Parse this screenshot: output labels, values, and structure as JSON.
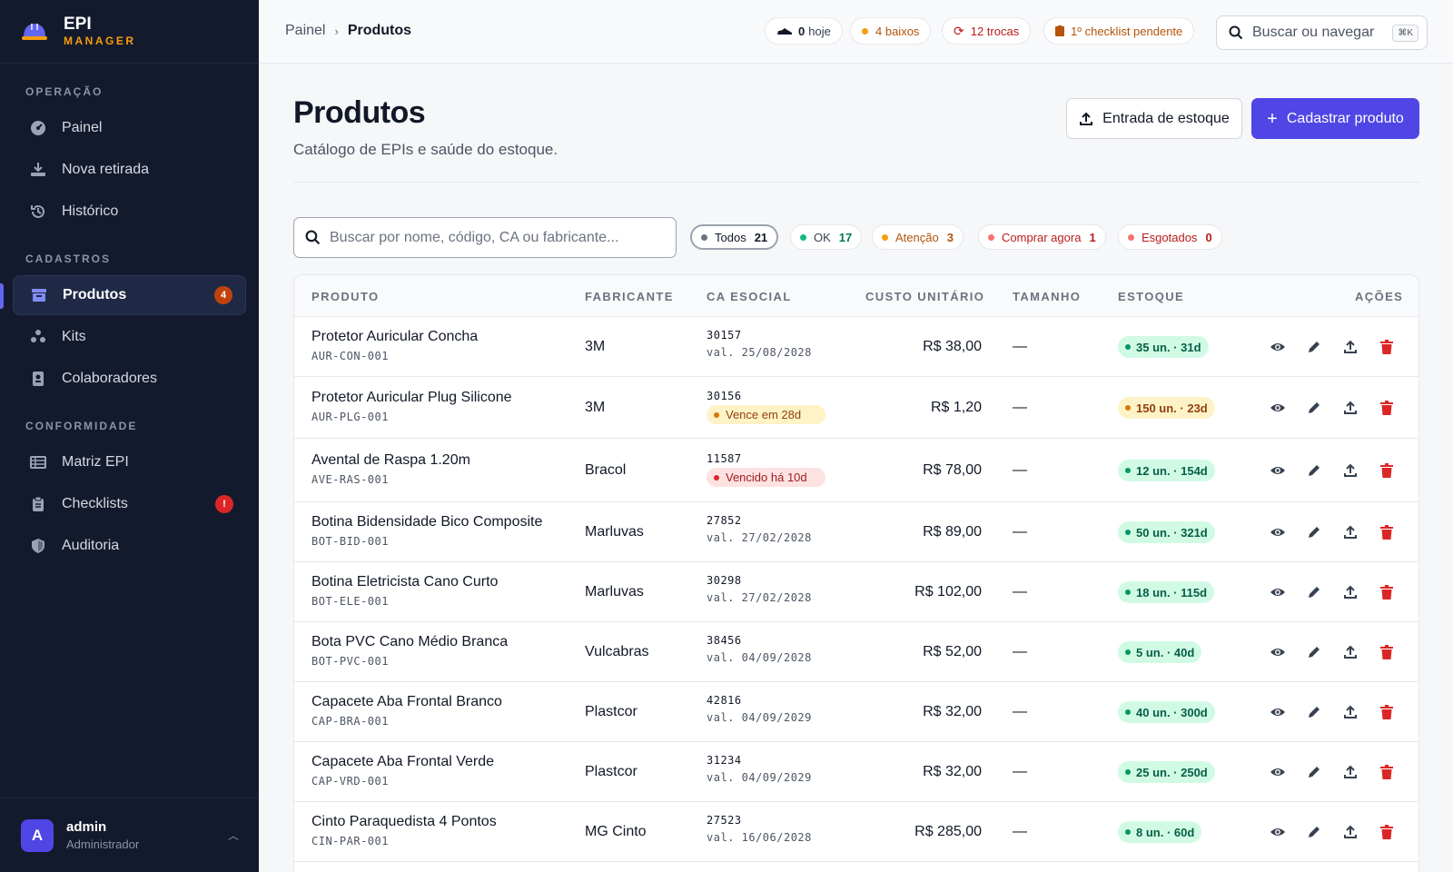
{
  "brand": {
    "title": "EPI",
    "subtitle": "MANAGER"
  },
  "sidebar": {
    "sections": [
      {
        "label": "OPERAÇÃO"
      },
      {
        "label": "CADASTROS"
      },
      {
        "label": "CONFORMIDADE"
      }
    ],
    "items": [
      {
        "label": "Painel",
        "icon": "dashboard-icon"
      },
      {
        "label": "Nova retirada",
        "icon": "hand-receive-icon"
      },
      {
        "label": "Histórico",
        "icon": "history-icon"
      },
      {
        "label": "Produtos",
        "icon": "archive-box-icon",
        "badge": "4",
        "active": true
      },
      {
        "label": "Kits",
        "icon": "kits-icon"
      },
      {
        "label": "Colaboradores",
        "icon": "id-badge-icon"
      },
      {
        "label": "Matriz EPI",
        "icon": "table-grid-icon"
      },
      {
        "label": "Checklists",
        "icon": "clipboard-icon",
        "badge": "!"
      },
      {
        "label": "Auditoria",
        "icon": "shield-icon"
      }
    ],
    "user": {
      "initial": "A",
      "name": "admin",
      "role": "Administrador"
    }
  },
  "topbar": {
    "breadcrumb": {
      "root": "Painel",
      "current": "Produtos"
    },
    "pills": [
      {
        "count": "0",
        "label": "hoje"
      },
      {
        "label": "4 baixos"
      },
      {
        "label": "12 trocas"
      },
      {
        "label": "1º checklist pendente"
      }
    ],
    "search": {
      "placeholder": "Buscar ou navegar",
      "shortcut": "⌘K"
    }
  },
  "page": {
    "title": "Produtos",
    "subtitle": "Catálogo de EPIs e saúde do estoque.",
    "btn_entry": "Entrada de estoque",
    "btn_new": "Cadastrar produto",
    "search_placeholder": "Buscar por nome, código, CA ou fabricante..."
  },
  "filters": [
    {
      "label": "Todos",
      "count": "21",
      "selected": true
    },
    {
      "label": "OK",
      "count": "17"
    },
    {
      "label": "Atenção",
      "count": "3"
    },
    {
      "label": "Comprar agora",
      "count": "1"
    },
    {
      "label": "Esgotados",
      "count": "0"
    }
  ],
  "table": {
    "headers": {
      "produto": "PRODUTO",
      "fabricante": "FABRICANTE",
      "ca": "CA ESOCIAL",
      "custo": "CUSTO UNITÁRIO",
      "tamanho": "TAMANHO",
      "estoque": "ESTOQUE",
      "acoes": "AÇÕES"
    },
    "rows": [
      {
        "name": "Protetor Auricular Concha",
        "code": "AUR-CON-001",
        "maker": "3M",
        "ca": "30157",
        "ca_sub": "val. 25/08/2028",
        "ca_status": "normal",
        "cost": "R$ 38,00",
        "size": "—",
        "stock": "35 un. · 31d",
        "stock_status": "ok"
      },
      {
        "name": "Protetor Auricular Plug Silicone",
        "code": "AUR-PLG-001",
        "maker": "3M",
        "ca": "30156",
        "ca_sub": "Vence em 28d",
        "ca_status": "warn",
        "cost": "R$ 1,20",
        "size": "—",
        "stock": "150 un. · 23d",
        "stock_status": "warn"
      },
      {
        "name": "Avental de Raspa 1.20m",
        "code": "AVE-RAS-001",
        "maker": "Bracol",
        "ca": "11587",
        "ca_sub": "Vencido há 10d",
        "ca_status": "danger",
        "cost": "R$ 78,00",
        "size": "—",
        "stock": "12 un. · 154d",
        "stock_status": "ok"
      },
      {
        "name": "Botina Bidensidade Bico Composite",
        "code": "BOT-BID-001",
        "maker": "Marluvas",
        "ca": "27852",
        "ca_sub": "val. 27/02/2028",
        "ca_status": "normal",
        "cost": "R$ 89,00",
        "size": "—",
        "stock": "50 un. · 321d",
        "stock_status": "ok"
      },
      {
        "name": "Botina Eletricista Cano Curto",
        "code": "BOT-ELE-001",
        "maker": "Marluvas",
        "ca": "30298",
        "ca_sub": "val. 27/02/2028",
        "ca_status": "normal",
        "cost": "R$ 102,00",
        "size": "—",
        "stock": "18 un. · 115d",
        "stock_status": "ok"
      },
      {
        "name": "Bota PVC Cano Médio Branca",
        "code": "BOT-PVC-001",
        "maker": "Vulcabras",
        "ca": "38456",
        "ca_sub": "val. 04/09/2028",
        "ca_status": "normal",
        "cost": "R$ 52,00",
        "size": "—",
        "stock": "5 un. · 40d",
        "stock_status": "ok"
      },
      {
        "name": "Capacete Aba Frontal Branco",
        "code": "CAP-BRA-001",
        "maker": "Plastcor",
        "ca": "42816",
        "ca_sub": "val. 04/09/2029",
        "ca_status": "normal",
        "cost": "R$ 32,00",
        "size": "—",
        "stock": "40 un. · 300d",
        "stock_status": "ok"
      },
      {
        "name": "Capacete Aba Frontal Verde",
        "code": "CAP-VRD-001",
        "maker": "Plastcor",
        "ca": "31234",
        "ca_sub": "val. 04/09/2029",
        "ca_status": "normal",
        "cost": "R$ 32,00",
        "size": "—",
        "stock": "25 un. · 250d",
        "stock_status": "ok"
      },
      {
        "name": "Cinto Paraquedista 4 Pontos",
        "code": "CIN-PAR-001",
        "maker": "MG Cinto",
        "ca": "27523",
        "ca_sub": "val. 16/06/2028",
        "ca_status": "normal",
        "cost": "R$ 285,00",
        "size": "—",
        "stock": "8 un. · 60d",
        "stock_status": "ok"
      }
    ]
  },
  "colors": {
    "accent": "#4f46e5",
    "ok": "#059669",
    "warn": "#d97706",
    "danger": "#dc2626",
    "sidebar_bg": "#141a2e"
  }
}
